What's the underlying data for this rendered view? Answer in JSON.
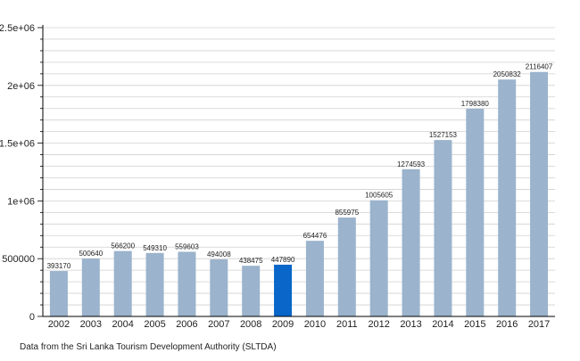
{
  "chart_data": {
    "type": "bar",
    "categories": [
      "2002",
      "2003",
      "2004",
      "2005",
      "2006",
      "2007",
      "2008",
      "2009",
      "2010",
      "2011",
      "2012",
      "2013",
      "2014",
      "2015",
      "2016",
      "2017"
    ],
    "values": [
      393170,
      500640,
      566200,
      549310,
      559603,
      494008,
      438475,
      447890,
      654476,
      855975,
      1005605,
      1274593,
      1527153,
      1798380,
      2050832,
      2116407
    ],
    "value_labels": [
      "393170",
      "500640",
      "566200",
      "549310",
      "559603",
      "494008",
      "438475",
      "447890",
      "654476",
      "855975",
      "1005605",
      "1274593",
      "1527153",
      "1798380",
      "2050832",
      "2116407"
    ],
    "highlight_category": "2009",
    "colors": {
      "bar": "#9bb3cc",
      "highlight": "#0a66c8",
      "grid": "#d0d0d0",
      "axis": "#000000"
    },
    "ylim": [
      0,
      2500000
    ],
    "y_ticks": [
      0,
      500000,
      1000000,
      1500000,
      2000000,
      2500000
    ],
    "y_tick_labels": [
      "0",
      "500000",
      "1e+06",
      "1.5e+06",
      "2e+06",
      "2.5e+06"
    ],
    "grid": true,
    "xlabel": "",
    "ylabel": "",
    "title": ""
  },
  "caption": "Data from the Sri Lanka Tourism Development Authority (SLTDA)"
}
